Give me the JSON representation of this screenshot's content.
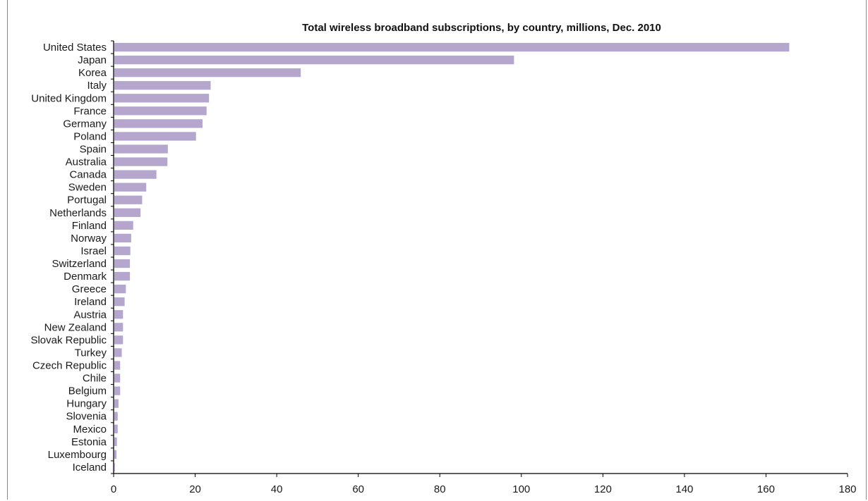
{
  "chart_data": {
    "type": "bar",
    "orientation": "horizontal",
    "title": "Total wireless broadband subscriptions, by country, millions, Dec. 2010",
    "xlabel": "",
    "ylabel": "",
    "xlim": [
      0,
      180
    ],
    "x_ticks": [
      "0",
      "20",
      "40",
      "60",
      "80",
      "100",
      "120",
      "140",
      "160",
      "180"
    ],
    "grid": false,
    "legend": "none",
    "bar_color": "#b4a6cc",
    "categories": [
      "United States",
      "Japan",
      "Korea",
      "Italy",
      "United Kingdom",
      "France",
      "Germany",
      "Poland",
      "Spain",
      "Australia",
      "Canada",
      "Sweden",
      "Portugal",
      "Netherlands",
      "Finland",
      "Norway",
      "Israel",
      "Switzerland",
      "Denmark",
      "Greece",
      "Ireland",
      "Austria",
      "New Zealand",
      "Slovak Republic",
      "Turkey",
      "Czech Republic",
      "Chile",
      "Belgium",
      "Hungary",
      "Slovenia",
      "Mexico",
      "Estonia",
      "Luxembourg",
      "Iceland"
    ],
    "values": [
      165.7,
      98.2,
      45.9,
      23.8,
      23.4,
      22.8,
      21.8,
      20.2,
      13.3,
      13.2,
      10.5,
      8.0,
      7.0,
      6.6,
      4.8,
      4.3,
      4.1,
      4.0,
      4.0,
      3.0,
      2.7,
      2.3,
      2.3,
      2.3,
      2.0,
      1.6,
      1.6,
      1.6,
      1.2,
      1.0,
      1.0,
      0.8,
      0.7,
      0.3
    ]
  }
}
